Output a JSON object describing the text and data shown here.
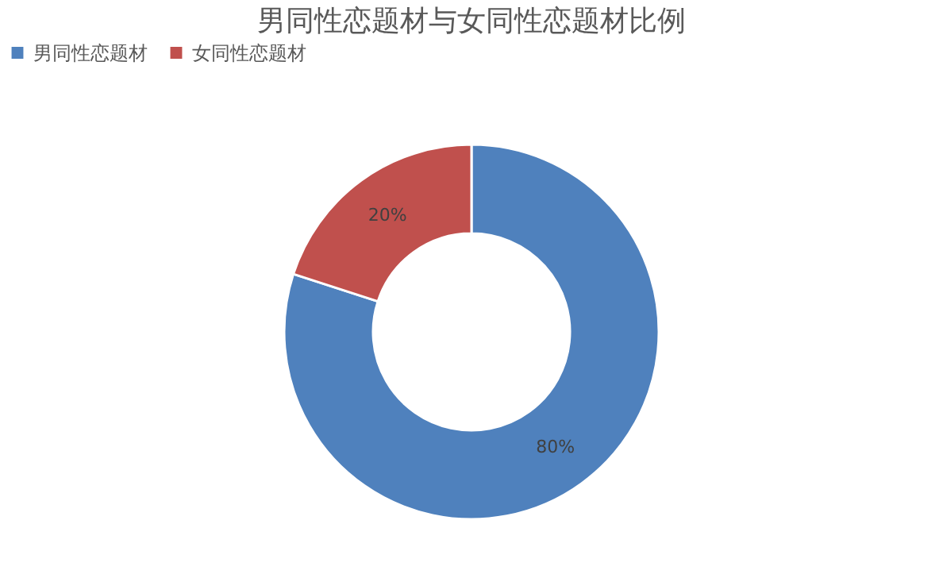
{
  "chart_data": {
    "type": "donut",
    "title": "男同性恋题材与女同性恋题材比例",
    "categories": [
      "男同性恋题材",
      "女同性恋题材"
    ],
    "values": [
      80,
      20
    ],
    "colors": [
      "#4f81bd",
      "#c0504d"
    ],
    "value_labels": [
      "80%",
      "20%"
    ],
    "legend": "top"
  }
}
